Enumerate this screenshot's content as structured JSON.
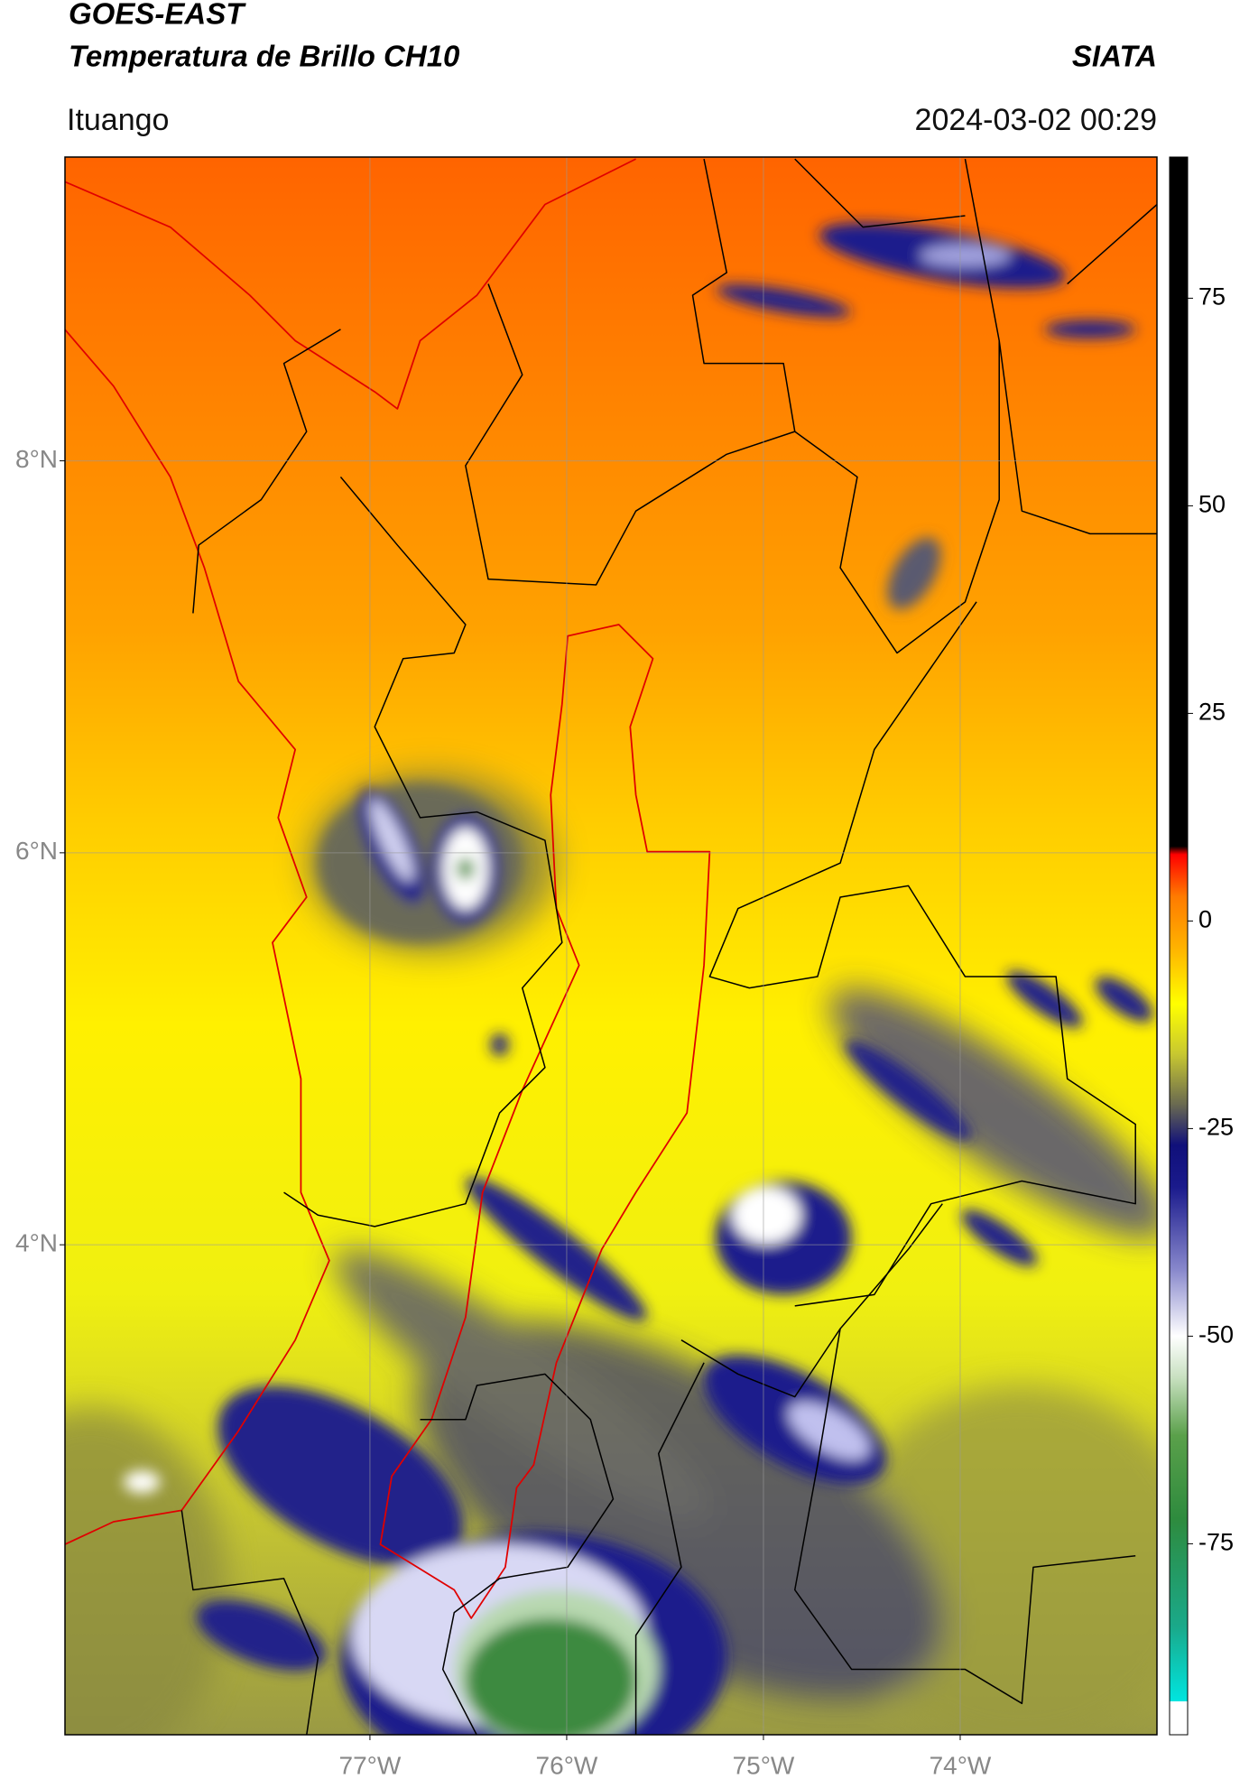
{
  "chart_data": {
    "type": "map",
    "title": "GOES-EAST",
    "subtitle": "Temperatura de Brillo CH10",
    "source": "SIATA",
    "region": "Ituango",
    "datetime": "2024-03-02 00:29",
    "xlim": [
      -78.55,
      -73.0
    ],
    "ylim": [
      1.5,
      9.55
    ],
    "xticks": [
      {
        "value": -77,
        "label": "77°W"
      },
      {
        "value": -76,
        "label": "76°W"
      },
      {
        "value": -75,
        "label": "75°W"
      },
      {
        "value": -74,
        "label": "74°W"
      }
    ],
    "yticks": [
      {
        "value": 4,
        "label": "4°N"
      },
      {
        "value": 6,
        "label": "6°N"
      },
      {
        "value": 8,
        "label": "8°N"
      }
    ],
    "grid": true,
    "colorbar": {
      "clim": [
        -98,
        92
      ],
      "ticks": [
        -75,
        -50,
        -25,
        0,
        25,
        50,
        75
      ],
      "colorscale": [
        {
          "value": -98,
          "color": "#ffffff"
        },
        {
          "value": -94,
          "color": "#ffffff"
        },
        {
          "value": -94,
          "color": "#00e5e0"
        },
        {
          "value": -85,
          "color": "#1aa98a"
        },
        {
          "value": -72,
          "color": "#2e8b3e"
        },
        {
          "value": -62,
          "color": "#5aa04a"
        },
        {
          "value": -55,
          "color": "#c8e0c0"
        },
        {
          "value": -50,
          "color": "#ffffff"
        },
        {
          "value": -42,
          "color": "#8888cc"
        },
        {
          "value": -32,
          "color": "#1a1a8c"
        },
        {
          "value": -27,
          "color": "#10107a"
        },
        {
          "value": -22,
          "color": "#6b6b50"
        },
        {
          "value": -16,
          "color": "#c8c830"
        },
        {
          "value": -10,
          "color": "#ffff00"
        },
        {
          "value": -3,
          "color": "#ffb000"
        },
        {
          "value": 3,
          "color": "#ff7a00"
        },
        {
          "value": 8,
          "color": "#ff0000"
        },
        {
          "value": 9,
          "color": "#000000"
        },
        {
          "value": 92,
          "color": "#000000"
        }
      ]
    }
  }
}
